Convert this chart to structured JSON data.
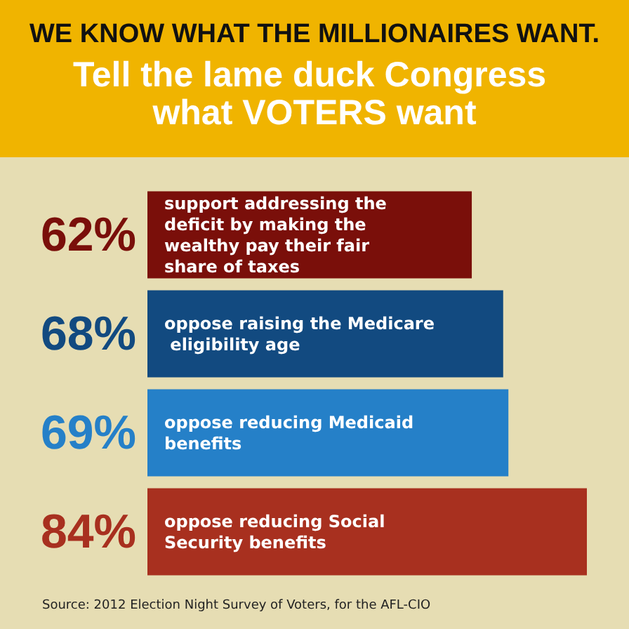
{
  "chart_data": {
    "type": "bar",
    "orientation": "horizontal",
    "title": "WE KNOW WHAT THE MILLIONAIRES WANT.",
    "subtitle": "Tell the lame duck Congress what VOTERS want",
    "categories": [
      "support addressing the deficit by making the wealthy pay their fair share of taxes",
      "oppose raising the Medicare eligibility age",
      "oppose reducing Medicaid benefits",
      "oppose reducing Social Security benefits"
    ],
    "values": [
      62,
      68,
      69,
      84
    ],
    "colors": [
      "#7a0f0a",
      "#124a80",
      "#2580c8",
      "#a8301f"
    ],
    "value_labels": [
      "62%",
      "68%",
      "69%",
      "84%"
    ],
    "annotations": [
      "Source: 2012 Election Night Survey of Voters, for the AFL-CIO"
    ]
  }
}
